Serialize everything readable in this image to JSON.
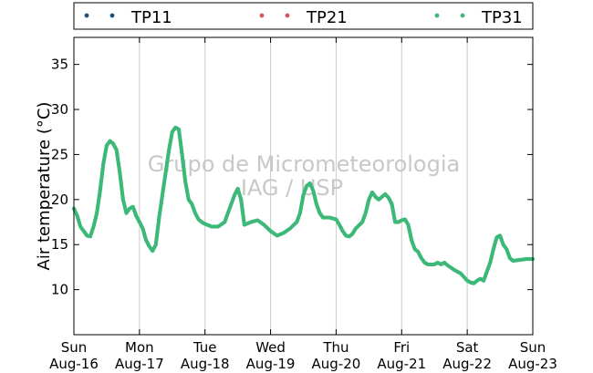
{
  "chart_data": {
    "type": "scatter",
    "title": "",
    "xlabel": "",
    "ylabel": "Air temperature (°C)",
    "xlim": [
      0,
      7
    ],
    "ylim": [
      5,
      38
    ],
    "yticks": [
      10,
      15,
      20,
      25,
      30,
      35
    ],
    "x_ticks": [
      {
        "x": 0,
        "day": "Sun",
        "date": "Aug-16"
      },
      {
        "x": 1,
        "day": "Mon",
        "date": "Aug-17"
      },
      {
        "x": 2,
        "day": "Tue",
        "date": "Aug-18"
      },
      {
        "x": 3,
        "day": "Wed",
        "date": "Aug-19"
      },
      {
        "x": 4,
        "day": "Thu",
        "date": "Aug-20"
      },
      {
        "x": 5,
        "day": "Fri",
        "date": "Aug-21"
      },
      {
        "x": 6,
        "day": "Sat",
        "date": "Aug-22"
      },
      {
        "x": 7,
        "day": "Sun",
        "date": "Aug-23"
      }
    ],
    "grid": {
      "vertical": true,
      "horizontal": false
    },
    "legend": {
      "placement": "top",
      "entries": [
        {
          "name": "TP11",
          "color": "#1f4e79"
        },
        {
          "name": "TP21",
          "color": "#d9534f"
        },
        {
          "name": "TP31",
          "color": "#3cb878"
        }
      ]
    },
    "annotation": [
      "Grupo de Micrometeorologia",
      "IAG / USP"
    ],
    "series": [
      {
        "name": "TP31",
        "color": "#3cb878",
        "key_points": [
          [
            0.0,
            19.0
          ],
          [
            0.05,
            18.2
          ],
          [
            0.1,
            17.0
          ],
          [
            0.15,
            16.5
          ],
          [
            0.2,
            16.0
          ],
          [
            0.25,
            15.9
          ],
          [
            0.3,
            17.0
          ],
          [
            0.35,
            18.5
          ],
          [
            0.4,
            21.0
          ],
          [
            0.45,
            24.0
          ],
          [
            0.5,
            26.0
          ],
          [
            0.55,
            26.5
          ],
          [
            0.6,
            26.2
          ],
          [
            0.65,
            25.5
          ],
          [
            0.7,
            23.0
          ],
          [
            0.75,
            20.0
          ],
          [
            0.8,
            18.5
          ],
          [
            0.85,
            19.0
          ],
          [
            0.9,
            19.2
          ],
          [
            0.95,
            18.2
          ],
          [
            1.0,
            17.5
          ],
          [
            1.05,
            16.8
          ],
          [
            1.1,
            15.5
          ],
          [
            1.15,
            14.8
          ],
          [
            1.2,
            14.3
          ],
          [
            1.25,
            15.0
          ],
          [
            1.3,
            18.0
          ],
          [
            1.35,
            20.5
          ],
          [
            1.4,
            23.0
          ],
          [
            1.45,
            25.5
          ],
          [
            1.5,
            27.5
          ],
          [
            1.55,
            28.0
          ],
          [
            1.6,
            27.8
          ],
          [
            1.65,
            25.0
          ],
          [
            1.7,
            22.0
          ],
          [
            1.75,
            20.0
          ],
          [
            1.8,
            19.5
          ],
          [
            1.85,
            18.5
          ],
          [
            1.9,
            17.8
          ],
          [
            1.95,
            17.5
          ],
          [
            2.0,
            17.3
          ],
          [
            2.1,
            17.0
          ],
          [
            2.2,
            17.0
          ],
          [
            2.3,
            17.5
          ],
          [
            2.35,
            18.5
          ],
          [
            2.4,
            19.5
          ],
          [
            2.45,
            20.5
          ],
          [
            2.5,
            21.2
          ],
          [
            2.55,
            20.0
          ],
          [
            2.6,
            17.2
          ],
          [
            2.7,
            17.5
          ],
          [
            2.8,
            17.7
          ],
          [
            2.9,
            17.2
          ],
          [
            3.0,
            16.5
          ],
          [
            3.1,
            16.0
          ],
          [
            3.2,
            16.3
          ],
          [
            3.3,
            16.8
          ],
          [
            3.4,
            17.5
          ],
          [
            3.45,
            18.5
          ],
          [
            3.5,
            20.5
          ],
          [
            3.55,
            21.5
          ],
          [
            3.6,
            21.8
          ],
          [
            3.65,
            21.0
          ],
          [
            3.7,
            19.5
          ],
          [
            3.75,
            18.5
          ],
          [
            3.8,
            18.0
          ],
          [
            3.9,
            18.0
          ],
          [
            4.0,
            17.8
          ],
          [
            4.05,
            17.2
          ],
          [
            4.1,
            16.5
          ],
          [
            4.15,
            16.0
          ],
          [
            4.2,
            15.9
          ],
          [
            4.25,
            16.2
          ],
          [
            4.3,
            16.8
          ],
          [
            4.4,
            17.5
          ],
          [
            4.45,
            18.5
          ],
          [
            4.5,
            20.0
          ],
          [
            4.55,
            20.8
          ],
          [
            4.6,
            20.3
          ],
          [
            4.65,
            20.0
          ],
          [
            4.7,
            20.3
          ],
          [
            4.75,
            20.6
          ],
          [
            4.8,
            20.2
          ],
          [
            4.85,
            19.5
          ],
          [
            4.9,
            17.5
          ],
          [
            4.95,
            17.5
          ],
          [
            5.0,
            17.7
          ],
          [
            5.05,
            17.8
          ],
          [
            5.1,
            17.2
          ],
          [
            5.15,
            15.5
          ],
          [
            5.2,
            14.5
          ],
          [
            5.25,
            14.2
          ],
          [
            5.3,
            13.5
          ],
          [
            5.35,
            13.0
          ],
          [
            5.4,
            12.8
          ],
          [
            5.5,
            12.8
          ],
          [
            5.55,
            13.0
          ],
          [
            5.6,
            12.8
          ],
          [
            5.65,
            13.0
          ],
          [
            5.7,
            12.7
          ],
          [
            5.8,
            12.2
          ],
          [
            5.9,
            11.8
          ],
          [
            6.0,
            11.0
          ],
          [
            6.05,
            10.8
          ],
          [
            6.1,
            10.7
          ],
          [
            6.15,
            11.0
          ],
          [
            6.2,
            11.2
          ],
          [
            6.25,
            11.0
          ],
          [
            6.3,
            12.0
          ],
          [
            6.35,
            13.0
          ],
          [
            6.4,
            14.5
          ],
          [
            6.45,
            15.8
          ],
          [
            6.5,
            16.0
          ],
          [
            6.55,
            15.0
          ],
          [
            6.6,
            14.5
          ],
          [
            6.65,
            13.5
          ],
          [
            6.7,
            13.2
          ],
          [
            6.8,
            13.3
          ],
          [
            6.9,
            13.4
          ],
          [
            7.0,
            13.4
          ]
        ]
      }
    ]
  }
}
